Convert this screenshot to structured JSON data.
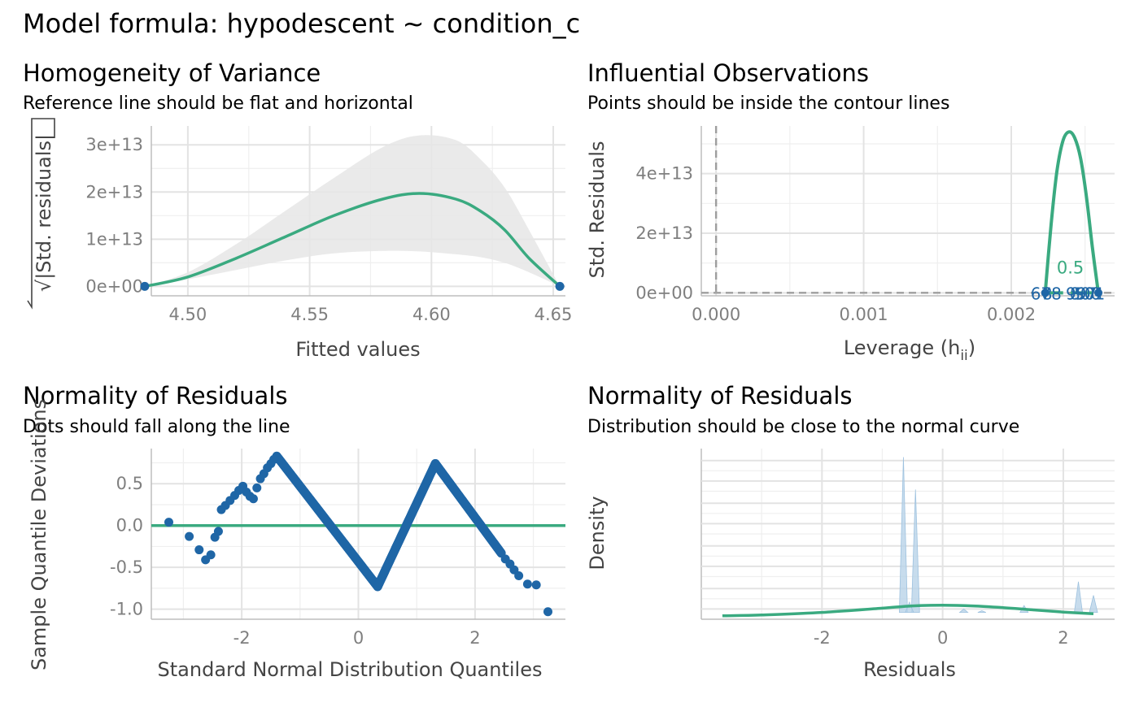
{
  "title": "Model formula: hypodescent ~ condition_c",
  "colors": {
    "line": "#3aaa80",
    "point": "#1f66a6",
    "band": "#e6e6e6",
    "reference": "#9e9e9e"
  },
  "chart_data": [
    {
      "id": "homogeneity",
      "type": "scatter",
      "title": "Homogeneity of Variance",
      "subtitle": "Reference line should be flat and horizontal",
      "xlabel": "Fitted values",
      "ylabel": "√|Std. residuals|",
      "xlim": [
        4.485,
        4.655
      ],
      "ylim": [
        -2000000000000.0,
        34000000000000.0
      ],
      "xticks": [
        4.5,
        4.55,
        4.6,
        4.65
      ],
      "xtick_labels": [
        "4.50",
        "4.55",
        "4.60",
        "4.65"
      ],
      "yticks": [
        0,
        10000000000000.0,
        20000000000000.0,
        30000000000000.0
      ],
      "ytick_labels": [
        "0e+00",
        "1e+13",
        "2e+13",
        "3e+13"
      ],
      "points": [
        [
          4.4823,
          0
        ],
        [
          4.6527,
          0
        ]
      ],
      "smooth": {
        "x": [
          4.4823,
          4.5,
          4.52,
          4.54,
          4.56,
          4.58,
          4.595,
          4.61,
          4.62,
          4.63,
          4.64,
          4.6527
        ],
        "y": [
          0,
          2000000000000.0,
          6000000000000.0,
          10500000000000.0,
          15000000000000.0,
          18500000000000.0,
          19700000000000.0,
          18500000000000.0,
          16000000000000.0,
          12000000000000.0,
          6000000000000.0,
          0
        ],
        "lower": [
          0,
          1500000000000.0,
          3500000000000.0,
          5500000000000.0,
          7000000000000.0,
          7500000000000.0,
          7400000000000.0,
          6800000000000.0,
          6200000000000.0,
          5000000000000.0,
          3000000000000.0,
          0
        ],
        "upper": [
          0,
          3000000000000.0,
          9000000000000.0,
          16000000000000.0,
          23000000000000.0,
          29500000000000.0,
          32000000000000.0,
          31000000000000.0,
          27000000000000.0,
          21000000000000.0,
          12000000000000.0,
          0
        ]
      }
    },
    {
      "id": "influential",
      "type": "scatter",
      "title": "Influential Observations",
      "subtitle": "Points should be inside the contour lines",
      "xlabel": "Leverage (h",
      "xlabel_sub": "ii",
      "xlabel_end": ")",
      "ylabel": "Std. Residuals",
      "xlim": [
        -0.0001,
        0.0027
      ],
      "ylim": [
        -1000000000000.0,
        56000000000000.0
      ],
      "xticks": [
        0.0,
        0.001,
        0.002
      ],
      "xtick_labels": [
        "0.000",
        "0.001",
        "0.002"
      ],
      "yticks": [
        0,
        20000000000000.0,
        40000000000000.0
      ],
      "ytick_labels": [
        "0e+00",
        "2e+13",
        "4e+13"
      ],
      "contour": {
        "x": [
          0.00223,
          0.00227,
          0.00231,
          0.00235,
          0.00239,
          0.00243,
          0.00247,
          0.00251,
          0.00255,
          0.00259
        ],
        "y": [
          0,
          23000000000000.0,
          41000000000000.0,
          51000000000000.0,
          54000000000000.0,
          52000000000000.0,
          45000000000000.0,
          32000000000000.0,
          15000000000000.0,
          0
        ]
      },
      "contour_label": "0.5",
      "contour_label_pos": [
        0.0024,
        6500000000000.0
      ],
      "points_left": {
        "x": 0.00223,
        "y": 0
      },
      "points_right": {
        "x": 0.00259,
        "y": 0
      },
      "point_labels_left": [
        "678",
        "8"
      ],
      "point_labels_right": [
        "997",
        "800",
        "501"
      ]
    },
    {
      "id": "qq",
      "type": "scatter",
      "title": "Normality of Residuals",
      "subtitle": "Dots should fall along the line",
      "xlabel": "Standard Normal Distribution Quantiles",
      "ylabel": "Sample Quantile Deviations",
      "xlim": [
        -3.55,
        3.55
      ],
      "ylim": [
        -1.12,
        0.92
      ],
      "xticks": [
        -2,
        0,
        2
      ],
      "xtick_labels": [
        "-2",
        "0",
        "2"
      ],
      "yticks": [
        -1.0,
        -0.5,
        0.0,
        0.5
      ],
      "ytick_labels": [
        "-1.0",
        "-0.5",
        "0.0",
        "0.5"
      ],
      "reference_y": 0,
      "segments": [
        {
          "from": [
            -1.4,
            0.83
          ],
          "to": [
            0.33,
            -0.73
          ],
          "n": 220
        },
        {
          "from": [
            0.33,
            -0.73
          ],
          "to": [
            1.32,
            0.74
          ],
          "n": 150
        },
        {
          "from": [
            1.32,
            0.74
          ],
          "to": [
            2.45,
            -0.33
          ],
          "n": 150
        }
      ],
      "points": [
        [
          -3.25,
          0.04
        ],
        [
          -2.9,
          -0.13
        ],
        [
          -2.73,
          -0.29
        ],
        [
          -2.62,
          -0.41
        ],
        [
          -2.53,
          -0.35
        ],
        [
          -2.46,
          -0.14
        ],
        [
          -2.4,
          -0.07
        ],
        [
          -2.35,
          0.19
        ],
        [
          -2.28,
          0.24
        ],
        [
          -2.2,
          0.3
        ],
        [
          -2.12,
          0.36
        ],
        [
          -2.05,
          0.42
        ],
        [
          -1.98,
          0.47
        ],
        [
          -1.92,
          0.4
        ],
        [
          -1.86,
          0.35
        ],
        [
          -1.8,
          0.32
        ],
        [
          -1.74,
          0.45
        ],
        [
          -1.68,
          0.56
        ],
        [
          -1.62,
          0.62
        ],
        [
          -1.56,
          0.69
        ],
        [
          -1.5,
          0.74
        ],
        [
          -1.45,
          0.79
        ],
        [
          2.52,
          -0.4
        ],
        [
          2.6,
          -0.46
        ],
        [
          2.67,
          -0.53
        ],
        [
          2.75,
          -0.6
        ],
        [
          2.9,
          -0.7
        ],
        [
          3.05,
          -0.71
        ],
        [
          3.25,
          -1.03
        ]
      ]
    },
    {
      "id": "density",
      "type": "area",
      "title": "Normality of Residuals",
      "subtitle": "Distribution should be close to the normal curve",
      "xlabel": "Residuals",
      "ylabel": "Density",
      "xlim": [
        -4.0,
        2.85
      ],
      "ylim": [
        0,
        1.0
      ],
      "xticks": [
        -2,
        0,
        2
      ],
      "xtick_labels": [
        "-2",
        "0",
        "2"
      ],
      "spikes": [
        [
          -0.65,
          0.95
        ],
        [
          -0.45,
          0.76
        ],
        [
          -0.55,
          0.1
        ],
        [
          0.35,
          0.06
        ],
        [
          0.65,
          0.05
        ],
        [
          1.35,
          0.08
        ],
        [
          1.95,
          0.05
        ],
        [
          2.25,
          0.22
        ],
        [
          2.5,
          0.14
        ]
      ],
      "normal_curve": {
        "x": [
          -3.65,
          -3.0,
          -2.0,
          -1.0,
          -0.5,
          0.0,
          0.5,
          1.0,
          1.5,
          2.0,
          2.5
        ],
        "y": [
          0.02,
          0.025,
          0.04,
          0.065,
          0.078,
          0.082,
          0.078,
          0.068,
          0.055,
          0.042,
          0.032
        ]
      }
    }
  ]
}
